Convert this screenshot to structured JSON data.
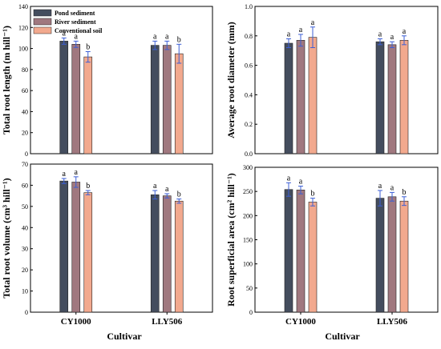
{
  "x_axis_title": "Cultivar",
  "colors": {
    "Pond sediment": "#444d5e",
    "River sediment": "#a0787f",
    "Conventional soil": "#f2a98e",
    "error_bar": "#3c5fd6"
  },
  "chart_data": [
    {
      "type": "bar",
      "categories": [
        "CY1000",
        "LLY506"
      ],
      "ylabel": "Total root length (m hill⁻¹)",
      "ylim": [
        0,
        140
      ],
      "yticks": [
        0,
        20,
        40,
        60,
        80,
        100,
        120,
        140
      ],
      "show_legend": true,
      "show_xlabels": false,
      "series": [
        {
          "name": "Pond sediment",
          "values": [
            107,
            103
          ],
          "errors": [
            3,
            4
          ],
          "labels": [
            "a",
            "a"
          ]
        },
        {
          "name": "River sediment",
          "values": [
            104,
            103
          ],
          "errors": [
            3,
            4
          ],
          "labels": [
            "a",
            "a"
          ]
        },
        {
          "name": "Conventional soil",
          "values": [
            92,
            95
          ],
          "errors": [
            5,
            9
          ],
          "labels": [
            "b",
            "b"
          ]
        }
      ]
    },
    {
      "type": "bar",
      "categories": [
        "CY1000",
        "LLY506"
      ],
      "ylabel": "Average root diameter (mm)",
      "ylim": [
        0,
        1.0
      ],
      "yticks": [
        "0.0",
        "0.2",
        "0.4",
        "0.6",
        "0.8",
        "1.0"
      ],
      "show_legend": false,
      "show_xlabels": false,
      "series": [
        {
          "name": "Pond sediment",
          "values": [
            0.75,
            0.76
          ],
          "errors": [
            0.03,
            0.02
          ],
          "labels": [
            "a",
            "a"
          ]
        },
        {
          "name": "River sediment",
          "values": [
            0.77,
            0.74
          ],
          "errors": [
            0.04,
            0.02
          ],
          "labels": [
            "a",
            "a"
          ]
        },
        {
          "name": "Conventional soil",
          "values": [
            0.79,
            0.77
          ],
          "errors": [
            0.07,
            0.03
          ],
          "labels": [
            "a",
            "a"
          ]
        }
      ]
    },
    {
      "type": "bar",
      "categories": [
        "CY1000",
        "LLY506"
      ],
      "ylabel": "Total root volume (cm³ hill⁻¹)",
      "ylim": [
        0,
        70
      ],
      "yticks": [
        0,
        10,
        20,
        30,
        40,
        50,
        60,
        70
      ],
      "show_legend": false,
      "show_xlabels": true,
      "series": [
        {
          "name": "Pond sediment",
          "values": [
            62,
            55.5
          ],
          "errors": [
            1.2,
            2
          ],
          "labels": [
            "a",
            "a"
          ]
        },
        {
          "name": "River sediment",
          "values": [
            61.5,
            55
          ],
          "errors": [
            2.5,
            1
          ],
          "labels": [
            "a",
            "a"
          ]
        },
        {
          "name": "Conventional soil",
          "values": [
            56.5,
            52.5
          ],
          "errors": [
            1,
            1
          ],
          "labels": [
            "b",
            "b"
          ]
        }
      ]
    },
    {
      "type": "bar",
      "categories": [
        "CY1000",
        "LLY506"
      ],
      "ylabel": "Root superficial area (cm² hill⁻¹)",
      "ylim": [
        0,
        300
      ],
      "yticks": [
        0,
        50,
        100,
        150,
        200,
        250,
        300
      ],
      "show_legend": false,
      "show_xlabels": true,
      "series": [
        {
          "name": "Pond sediment",
          "values": [
            254,
            236
          ],
          "errors": [
            14,
            16
          ],
          "labels": [
            "a",
            "a"
          ]
        },
        {
          "name": "River sediment",
          "values": [
            253,
            239
          ],
          "errors": [
            8,
            9
          ],
          "labels": [
            "a",
            "a"
          ]
        },
        {
          "name": "Conventional soil",
          "values": [
            228,
            230
          ],
          "errors": [
            8,
            9
          ],
          "labels": [
            "b",
            "b"
          ]
        }
      ]
    }
  ]
}
